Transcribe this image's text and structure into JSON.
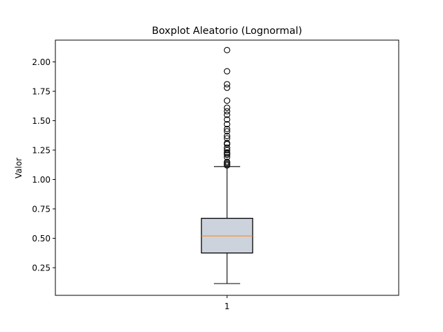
{
  "chart_data": {
    "type": "boxplot",
    "title": "Boxplot Aleatorio (Lognormal)",
    "xlabel": "",
    "ylabel": "Valor",
    "categories": [
      "1"
    ],
    "ylim": [
      0.015,
      2.185
    ],
    "yticks": [
      0.25,
      0.5,
      0.75,
      1.0,
      1.25,
      1.5,
      1.75,
      2.0
    ],
    "ytick_labels": [
      "0.25",
      "0.50",
      "0.75",
      "1.00",
      "1.25",
      "1.50",
      "1.75",
      "2.00"
    ],
    "grid": false,
    "legend": "none",
    "box": {
      "whisker_low": 0.115,
      "q1": 0.375,
      "median": 0.52,
      "q3": 0.67,
      "whisker_high": 1.11
    },
    "outliers": [
      1.12,
      1.13,
      1.14,
      1.15,
      1.19,
      1.21,
      1.22,
      1.23,
      1.25,
      1.27,
      1.3,
      1.31,
      1.35,
      1.37,
      1.41,
      1.43,
      1.47,
      1.51,
      1.55,
      1.58,
      1.61,
      1.67,
      1.78,
      1.81,
      1.92,
      2.1
    ],
    "colors": {
      "box_fill": "#cdd3dc",
      "median": "#ff7f0e",
      "line": "#000000"
    }
  }
}
